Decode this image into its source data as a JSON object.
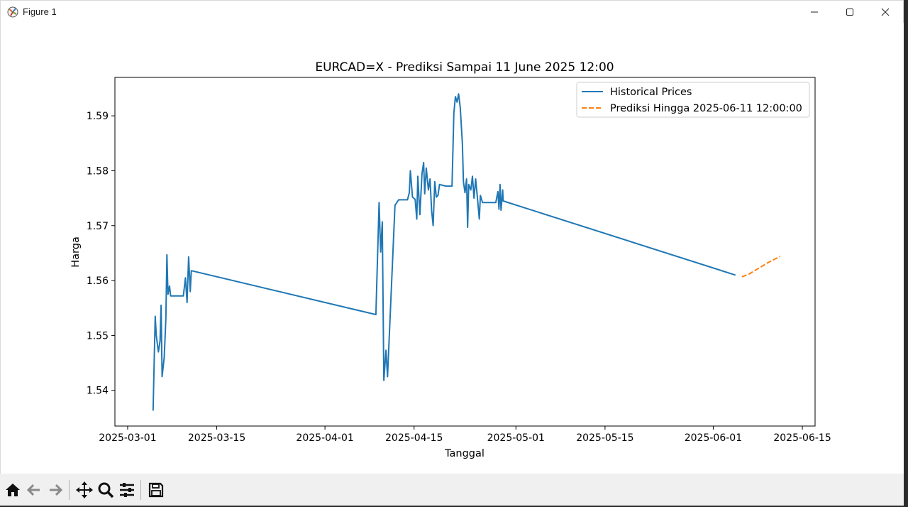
{
  "window": {
    "title": "Figure 1",
    "controls": [
      "minimize",
      "maximize",
      "close"
    ]
  },
  "toolbar": {
    "buttons": [
      {
        "name": "home-icon"
      },
      {
        "name": "back-arrow-icon"
      },
      {
        "name": "forward-arrow-icon"
      },
      {
        "name": "pan-icon"
      },
      {
        "name": "zoom-icon"
      },
      {
        "name": "configure-subplots-icon"
      },
      {
        "name": "save-icon"
      }
    ]
  },
  "chart_data": {
    "type": "line",
    "title": "EURCAD=X - Prediksi Sampai 11 June 2025 12:00",
    "xlabel": "Tanggal",
    "ylabel": "Harga",
    "x_ticks": [
      "2025-03-01",
      "2025-03-15",
      "2025-04-01",
      "2025-04-15",
      "2025-05-01",
      "2025-05-15",
      "2025-06-01",
      "2025-06-15"
    ],
    "y_ticks": [
      "1.54",
      "1.55",
      "1.56",
      "1.57",
      "1.58",
      "1.59"
    ],
    "xlim": [
      "2025-02-27",
      "2025-06-17"
    ],
    "ylim": [
      1.5335,
      1.597
    ],
    "legend_position": "upper right",
    "grid": false,
    "series": [
      {
        "name": "Historical Prices",
        "color": "#1f77b4",
        "style": "solid",
        "points": [
          [
            "2025-03-05 00:00",
            1.5363
          ],
          [
            "2025-03-05 08:00",
            1.5535
          ],
          [
            "2025-03-05 12:00",
            1.55
          ],
          [
            "2025-03-05 20:00",
            1.547
          ],
          [
            "2025-03-06 02:00",
            1.549
          ],
          [
            "2025-03-06 06:00",
            1.5555
          ],
          [
            "2025-03-06 10:00",
            1.5425
          ],
          [
            "2025-03-06 18:00",
            1.546
          ],
          [
            "2025-03-07 00:00",
            1.553
          ],
          [
            "2025-03-07 04:00",
            1.5647
          ],
          [
            "2025-03-07 08:00",
            1.5575
          ],
          [
            "2025-03-07 14:00",
            1.559
          ],
          [
            "2025-03-07 18:00",
            1.5572
          ],
          [
            "2025-03-09 00:00",
            1.5572
          ],
          [
            "2025-03-09 18:00",
            1.5572
          ],
          [
            "2025-03-10 02:00",
            1.5605
          ],
          [
            "2025-03-10 08:00",
            1.556
          ],
          [
            "2025-03-10 14:00",
            1.5643
          ],
          [
            "2025-03-10 20:00",
            1.558
          ],
          [
            "2025-03-11 00:00",
            1.5618
          ],
          [
            "2025-04-09 00:00",
            1.5538
          ],
          [
            "2025-04-09 12:00",
            1.5742
          ],
          [
            "2025-04-09 18:00",
            1.5652
          ],
          [
            "2025-04-10 00:00",
            1.5707
          ],
          [
            "2025-04-10 06:00",
            1.5418
          ],
          [
            "2025-04-10 14:00",
            1.5473
          ],
          [
            "2025-04-10 20:00",
            1.5425
          ],
          [
            "2025-04-12 00:00",
            1.5737
          ],
          [
            "2025-04-12 14:00",
            1.5747
          ],
          [
            "2025-04-13 23:00",
            1.5747
          ],
          [
            "2025-04-14 06:00",
            1.576
          ],
          [
            "2025-04-14 10:00",
            1.58
          ],
          [
            "2025-04-14 18:00",
            1.5752
          ],
          [
            "2025-04-15 04:00",
            1.5748
          ],
          [
            "2025-04-15 10:00",
            1.5712
          ],
          [
            "2025-04-15 14:00",
            1.579
          ],
          [
            "2025-04-15 22:00",
            1.572
          ],
          [
            "2025-04-16 06:00",
            1.5795
          ],
          [
            "2025-04-16 12:00",
            1.5815
          ],
          [
            "2025-04-16 16:00",
            1.5758
          ],
          [
            "2025-04-16 22:00",
            1.5805
          ],
          [
            "2025-04-17 06:00",
            1.5765
          ],
          [
            "2025-04-17 12:00",
            1.5785
          ],
          [
            "2025-04-17 18:00",
            1.5728
          ],
          [
            "2025-04-18 00:00",
            1.57
          ],
          [
            "2025-04-18 06:00",
            1.578
          ],
          [
            "2025-04-18 12:00",
            1.5752
          ],
          [
            "2025-04-18 18:00",
            1.5755
          ],
          [
            "2025-04-19 00:00",
            1.5775
          ],
          [
            "2025-04-20 00:00",
            1.5772
          ],
          [
            "2025-04-20 23:00",
            1.5772
          ],
          [
            "2025-04-21 06:00",
            1.5905
          ],
          [
            "2025-04-21 12:00",
            1.5935
          ],
          [
            "2025-04-21 18:00",
            1.5925
          ],
          [
            "2025-04-22 00:00",
            1.594
          ],
          [
            "2025-04-22 06:00",
            1.5915
          ],
          [
            "2025-04-22 14:00",
            1.585
          ],
          [
            "2025-04-22 18:00",
            1.578
          ],
          [
            "2025-04-23 00:00",
            1.576
          ],
          [
            "2025-04-23 06:00",
            1.5785
          ],
          [
            "2025-04-23 10:00",
            1.5697
          ],
          [
            "2025-04-23 14:00",
            1.5775
          ],
          [
            "2025-04-23 22:00",
            1.5765
          ],
          [
            "2025-04-24 04:00",
            1.579
          ],
          [
            "2025-04-24 10:00",
            1.575
          ],
          [
            "2025-04-24 16:00",
            1.5785
          ],
          [
            "2025-04-24 22:00",
            1.5755
          ],
          [
            "2025-04-25 06:00",
            1.5712
          ],
          [
            "2025-04-25 10:00",
            1.5755
          ],
          [
            "2025-04-25 18:00",
            1.5742
          ],
          [
            "2025-04-26 00:00",
            1.5742
          ],
          [
            "2025-04-27 20:00",
            1.5742
          ],
          [
            "2025-04-28 04:00",
            1.5762
          ],
          [
            "2025-04-28 08:00",
            1.573
          ],
          [
            "2025-04-28 12:00",
            1.5775
          ],
          [
            "2025-04-28 16:00",
            1.5728
          ],
          [
            "2025-04-28 22:00",
            1.5765
          ],
          [
            "2025-04-29 00:00",
            1.5745
          ],
          [
            "2025-06-04 12:00",
            1.561
          ]
        ]
      },
      {
        "name": "Prediksi Hingga 2025-06-11 12:00:00",
        "color": "#ff7f0e",
        "style": "dashed",
        "points": [
          [
            "2025-06-05 12:00",
            1.5607
          ],
          [
            "2025-06-06 12:00",
            1.5611
          ],
          [
            "2025-06-07 12:00",
            1.5618
          ],
          [
            "2025-06-08 12:00",
            1.5625
          ],
          [
            "2025-06-09 12:00",
            1.5632
          ],
          [
            "2025-06-10 12:00",
            1.5638
          ],
          [
            "2025-06-11 12:00",
            1.5644
          ]
        ]
      }
    ]
  }
}
